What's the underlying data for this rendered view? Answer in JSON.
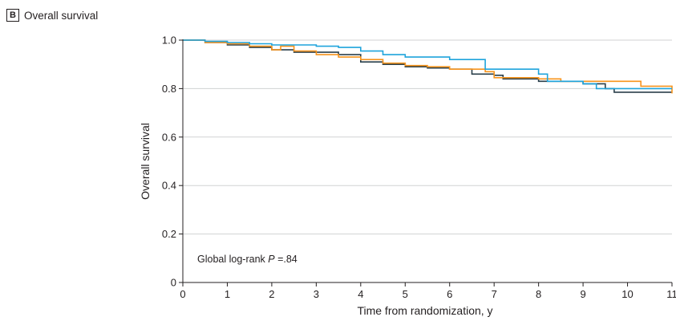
{
  "panel": {
    "letter": "B",
    "title": "Overall survival"
  },
  "chart_data": {
    "type": "line",
    "subtype": "kaplan-meier-step",
    "title": "Overall survival",
    "xlabel": "Time from randomization, y",
    "ylabel": "Overall survival",
    "xlim": [
      0,
      11
    ],
    "ylim": [
      0,
      1.0
    ],
    "x_ticks": [
      0,
      1,
      2,
      3,
      4,
      5,
      6,
      7,
      8,
      9,
      10,
      11
    ],
    "y_ticks": [
      0,
      0.2,
      0.4,
      0.6,
      0.8,
      1.0
    ],
    "y_tick_labels": [
      "0",
      "0.2",
      "0.4",
      "0.6",
      "0.8",
      "1.0"
    ],
    "grid": "horizontal",
    "legend": "none",
    "annotation": {
      "prefix": "Global log-rank ",
      "italic": "P",
      "suffix": " =.84"
    },
    "series": [
      {
        "color": "#2a3f4a",
        "points": [
          [
            0,
            1.0
          ],
          [
            0.5,
            0.99
          ],
          [
            1.0,
            0.98
          ],
          [
            1.5,
            0.97
          ],
          [
            2.0,
            0.96
          ],
          [
            2.5,
            0.95
          ],
          [
            3.0,
            0.95
          ],
          [
            3.5,
            0.94
          ],
          [
            4.0,
            0.91
          ],
          [
            4.5,
            0.9
          ],
          [
            5.0,
            0.89
          ],
          [
            5.5,
            0.885
          ],
          [
            6.0,
            0.88
          ],
          [
            6.5,
            0.86
          ],
          [
            7.0,
            0.855
          ],
          [
            7.2,
            0.84
          ],
          [
            7.8,
            0.84
          ],
          [
            8.0,
            0.83
          ],
          [
            8.5,
            0.83
          ],
          [
            9.0,
            0.82
          ],
          [
            9.5,
            0.8
          ],
          [
            9.7,
            0.785
          ],
          [
            10.5,
            0.785
          ],
          [
            11.0,
            0.785
          ]
        ]
      },
      {
        "color": "#f7941d",
        "points": [
          [
            0,
            1.0
          ],
          [
            0.5,
            0.99
          ],
          [
            1.0,
            0.985
          ],
          [
            1.5,
            0.975
          ],
          [
            2.0,
            0.96
          ],
          [
            2.2,
            0.975
          ],
          [
            2.5,
            0.955
          ],
          [
            3.0,
            0.94
          ],
          [
            3.5,
            0.93
          ],
          [
            4.0,
            0.92
          ],
          [
            4.5,
            0.905
          ],
          [
            5.0,
            0.895
          ],
          [
            5.5,
            0.89
          ],
          [
            6.0,
            0.88
          ],
          [
            6.5,
            0.88
          ],
          [
            6.8,
            0.87
          ],
          [
            7.0,
            0.845
          ],
          [
            7.5,
            0.845
          ],
          [
            8.0,
            0.84
          ],
          [
            8.5,
            0.83
          ],
          [
            9.0,
            0.83
          ],
          [
            9.5,
            0.83
          ],
          [
            10.0,
            0.83
          ],
          [
            10.3,
            0.81
          ],
          [
            10.7,
            0.81
          ],
          [
            11.0,
            0.78
          ]
        ]
      },
      {
        "color": "#1fa4dc",
        "points": [
          [
            0,
            1.0
          ],
          [
            0.5,
            0.995
          ],
          [
            1.0,
            0.99
          ],
          [
            1.5,
            0.985
          ],
          [
            2.0,
            0.98
          ],
          [
            2.5,
            0.98
          ],
          [
            3.0,
            0.975
          ],
          [
            3.5,
            0.97
          ],
          [
            4.0,
            0.955
          ],
          [
            4.5,
            0.94
          ],
          [
            5.0,
            0.93
          ],
          [
            5.5,
            0.93
          ],
          [
            6.0,
            0.92
          ],
          [
            6.5,
            0.92
          ],
          [
            6.8,
            0.88
          ],
          [
            7.0,
            0.88
          ],
          [
            7.5,
            0.88
          ],
          [
            8.0,
            0.86
          ],
          [
            8.2,
            0.83
          ],
          [
            8.5,
            0.83
          ],
          [
            9.0,
            0.82
          ],
          [
            9.3,
            0.8
          ],
          [
            10.0,
            0.8
          ],
          [
            11.0,
            0.8
          ]
        ]
      }
    ]
  }
}
